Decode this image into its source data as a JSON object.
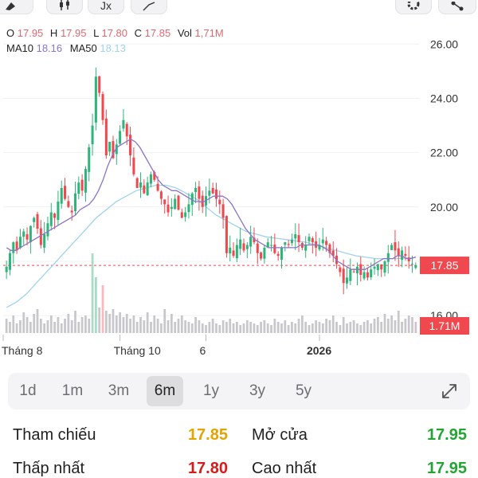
{
  "toolbar": {
    "buttons": [
      {
        "name": "draw-tool",
        "icon": "pen-icon"
      },
      {
        "name": "candle-type",
        "icon": "candlestick-icon"
      },
      {
        "name": "indicators",
        "icon": "function-icon",
        "label": "Jx"
      },
      {
        "name": "compare",
        "icon": "trend-arrow-icon"
      },
      {
        "name": "settings",
        "icon": "gear-icon"
      },
      {
        "name": "share",
        "icon": "share-icon"
      }
    ]
  },
  "ohlc": {
    "o_key": "O",
    "o": "17.95",
    "h_key": "H",
    "h": "17.95",
    "l_key": "L",
    "l": "17.80",
    "c_key": "C",
    "c": "17.85",
    "vol_key": "Vol",
    "vol": "1,71M"
  },
  "ma": {
    "ma10_key": "MA10",
    "ma10": "18.16",
    "ma50_key": "MA50",
    "ma50": "18.13"
  },
  "chart_data": {
    "type": "candlestick",
    "price_axis": {
      "ticks": [
        "26.00",
        "24.00",
        "22.00",
        "20.00",
        "18.00",
        "16.00"
      ],
      "range": [
        15.3,
        26.8
      ]
    },
    "x_ticks": [
      "Tháng 8",
      "Tháng 10",
      "6",
      "2026"
    ],
    "current_price_label": "17.85",
    "current_volume_label": "1.71M",
    "colors": {
      "up": "#2db57a",
      "down": "#f0484f",
      "ma10": "#8b73c6",
      "ma50": "#9fd3ee",
      "volume": "#c8c8cc",
      "price_tag": "#f0484f"
    },
    "closes": [
      17.8,
      18.3,
      18.7,
      18.4,
      18.9,
      19.1,
      18.8,
      19.3,
      19.6,
      19.2,
      18.6,
      19.0,
      19.4,
      19.8,
      19.6,
      20.2,
      20.7,
      20.3,
      20.0,
      19.8,
      20.5,
      20.9,
      20.6,
      21.4,
      22.2,
      23.0,
      24.8,
      24.2,
      23.2,
      21.9,
      22.4,
      21.8,
      22.3,
      22.8,
      23.2,
      22.6,
      21.9,
      21.2,
      20.7,
      20.9,
      20.5,
      20.9,
      21.2,
      21.0,
      20.6,
      20.3,
      20.1,
      19.8,
      20.0,
      20.3,
      19.9,
      19.6,
      19.8,
      20.1,
      20.5,
      20.7,
      20.3,
      20.0,
      20.4,
      20.6,
      20.5,
      20.3,
      20.1,
      19.6,
      18.3,
      18.5,
      18.2,
      18.6,
      18.8,
      18.4,
      18.6,
      18.9,
      18.7,
      18.3,
      18.1,
      18.5,
      18.7,
      18.6,
      18.3,
      18.2,
      18.5,
      18.7,
      18.6,
      18.8,
      19.0,
      18.7,
      18.5,
      18.6,
      18.9,
      18.7,
      18.5,
      18.6,
      18.8,
      18.6,
      18.3,
      18.2,
      17.9,
      17.6,
      17.2,
      17.4,
      17.7,
      17.6,
      17.8,
      17.5,
      17.6,
      17.4,
      17.7,
      17.8,
      17.9,
      17.7,
      18.0,
      18.3,
      18.6,
      18.4,
      18.2,
      18.4,
      18.2,
      18.0,
      17.9,
      17.85
    ],
    "ma10": [
      18.5,
      18.4,
      18.4,
      18.5,
      18.6,
      18.7,
      18.8,
      18.9,
      19.0,
      19.1,
      19.2,
      19.3,
      19.4,
      19.5,
      19.6,
      19.7,
      19.9,
      20.0,
      20.1,
      20.3,
      20.6,
      21.0,
      21.5,
      21.9,
      22.2,
      22.3,
      22.4,
      22.5,
      22.4,
      22.2,
      21.9,
      21.6,
      21.3,
      21.0,
      20.8,
      20.7,
      20.6,
      20.6,
      20.5,
      20.4,
      20.3,
      20.2,
      20.2,
      20.2,
      20.3,
      20.4,
      20.4,
      20.4,
      20.3,
      20.1,
      19.8,
      19.5,
      19.2,
      19.0,
      18.8,
      18.7,
      18.6,
      18.5,
      18.5,
      18.5,
      18.5,
      18.5,
      18.5,
      18.5,
      18.6,
      18.6,
      18.6,
      18.6,
      18.6,
      18.5,
      18.4,
      18.2,
      18.0,
      17.9,
      17.8,
      17.7,
      17.7,
      17.7,
      17.7,
      17.8,
      17.9,
      18.0,
      18.1,
      18.1,
      18.1,
      18.2,
      18.2,
      18.1,
      18.1,
      18.16
    ],
    "ma50": [
      16.3,
      16.5,
      16.8,
      17.2,
      17.6,
      18.0,
      18.4,
      18.8,
      19.2,
      19.6,
      19.9,
      20.2,
      20.4,
      20.6,
      20.7,
      20.8,
      20.8,
      20.7,
      20.5,
      20.3,
      20.0,
      19.7,
      19.5,
      19.3,
      19.1,
      19.0,
      18.9,
      18.85,
      18.8,
      18.75,
      18.7,
      18.6,
      18.5,
      18.4,
      18.3,
      18.2,
      18.15,
      18.1,
      18.1,
      18.1,
      18.12,
      18.13
    ],
    "volume_scale_max": 100,
    "volumes": [
      18,
      14,
      22,
      12,
      16,
      26,
      20,
      14,
      24,
      30,
      18,
      12,
      16,
      22,
      14,
      20,
      12,
      18,
      24,
      16,
      28,
      14,
      20,
      22,
      18,
      100,
      70,
      32,
      60,
      28,
      24,
      30,
      22,
      26,
      20,
      24,
      18,
      22,
      14,
      20,
      16,
      26,
      14,
      22,
      18,
      12,
      30,
      16,
      24,
      14,
      18,
      22,
      16,
      14,
      12,
      20,
      16,
      12,
      10,
      14,
      18,
      12,
      10,
      16,
      14,
      18,
      12,
      14,
      10,
      12,
      16,
      14,
      12,
      10,
      14,
      16,
      12,
      10,
      18,
      14,
      12,
      16,
      10,
      14,
      12,
      18,
      22,
      14,
      10,
      12,
      16,
      14,
      12,
      18,
      16,
      22,
      14,
      10,
      20,
      12,
      14,
      16,
      12,
      10,
      14,
      16,
      12,
      18,
      20,
      14,
      24,
      18,
      22,
      16,
      28,
      14,
      18,
      22,
      20,
      14
    ]
  },
  "periods": {
    "items": [
      "1d",
      "1m",
      "3m",
      "6m",
      "1y",
      "3y",
      "5y"
    ],
    "selected": "6m"
  },
  "stats": {
    "ref_label": "Tham chiếu",
    "ref_value": "17.85",
    "open_label": "Mở cửa",
    "open_value": "17.95",
    "low_label": "Thấp nhất",
    "low_value": "17.80",
    "high_label": "Cao nhất",
    "high_value": "17.95",
    "ref_color": "#e2a400",
    "open_color": "#23a534",
    "low_color": "#d81a1a",
    "high_color": "#23a534"
  }
}
